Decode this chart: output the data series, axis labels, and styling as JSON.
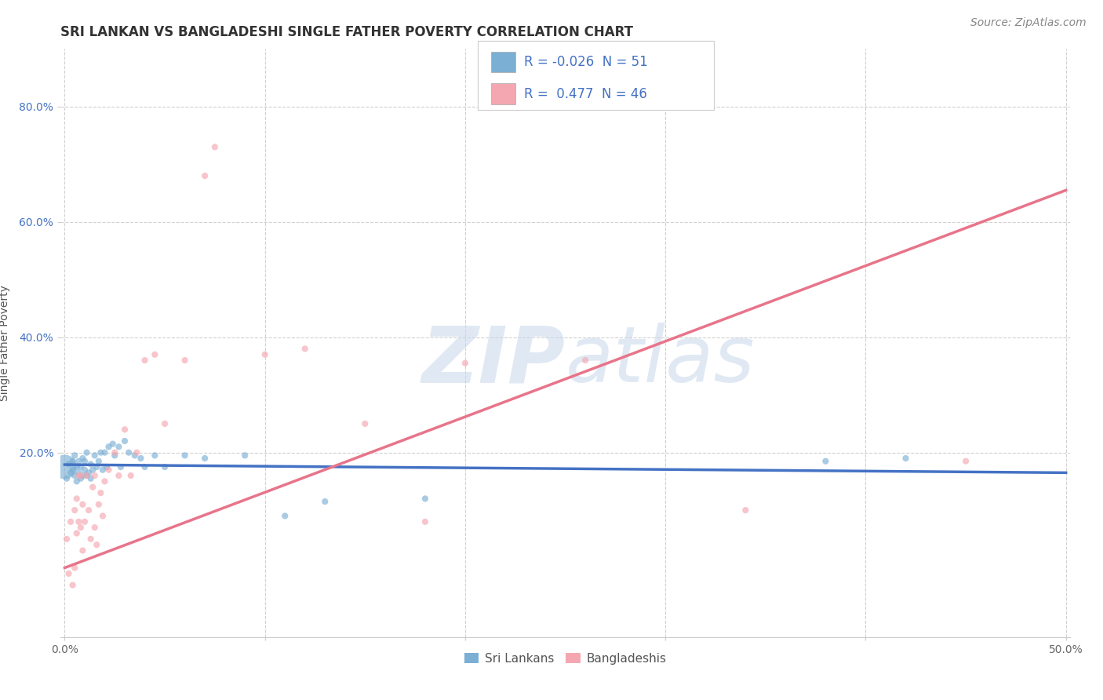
{
  "title": "SRI LANKAN VS BANGLADESHI SINGLE FATHER POVERTY CORRELATION CHART",
  "source": "Source: ZipAtlas.com",
  "ylabel": "Single Father Poverty",
  "xlim": [
    -0.002,
    0.502
  ],
  "ylim": [
    -0.12,
    0.9
  ],
  "xtick_labels": [
    "0.0%",
    "",
    "",
    "",
    "",
    "50.0%"
  ],
  "xtick_vals": [
    0.0,
    0.1,
    0.2,
    0.3,
    0.4,
    0.5
  ],
  "ytick_labels": [
    "20.0%",
    "40.0%",
    "60.0%",
    "80.0%"
  ],
  "ytick_vals": [
    0.2,
    0.4,
    0.6,
    0.8
  ],
  "sri_lanka_color": "#7bafd4",
  "bangladesh_color": "#f4a7b0",
  "sri_lanka_line_color": "#4472c4",
  "bangladesh_line_color": "#e8748a",
  "watermark": "ZIPatlas",
  "legend_r_sri": "-0.026",
  "legend_n_sri": "51",
  "legend_r_ban": "0.477",
  "legend_n_ban": "46",
  "sri_lanka_x": [
    0.0,
    0.001,
    0.002,
    0.003,
    0.004,
    0.004,
    0.005,
    0.005,
    0.006,
    0.006,
    0.007,
    0.007,
    0.008,
    0.008,
    0.009,
    0.009,
    0.01,
    0.01,
    0.011,
    0.011,
    0.012,
    0.013,
    0.013,
    0.014,
    0.015,
    0.016,
    0.017,
    0.018,
    0.019,
    0.02,
    0.021,
    0.022,
    0.024,
    0.025,
    0.027,
    0.028,
    0.03,
    0.032,
    0.035,
    0.038,
    0.04,
    0.045,
    0.05,
    0.06,
    0.07,
    0.09,
    0.11,
    0.13,
    0.18,
    0.38,
    0.42
  ],
  "sri_lanka_y": [
    0.175,
    0.155,
    0.18,
    0.165,
    0.17,
    0.185,
    0.16,
    0.195,
    0.15,
    0.175,
    0.165,
    0.185,
    0.155,
    0.175,
    0.16,
    0.19,
    0.17,
    0.185,
    0.16,
    0.2,
    0.165,
    0.155,
    0.18,
    0.17,
    0.195,
    0.175,
    0.185,
    0.2,
    0.17,
    0.2,
    0.175,
    0.21,
    0.215,
    0.195,
    0.21,
    0.175,
    0.22,
    0.2,
    0.195,
    0.19,
    0.175,
    0.195,
    0.175,
    0.195,
    0.19,
    0.195,
    0.09,
    0.115,
    0.12,
    0.185,
    0.19
  ],
  "sri_lanka_sizes": [
    500,
    35,
    35,
    35,
    35,
    35,
    35,
    35,
    35,
    35,
    35,
    35,
    35,
    35,
    35,
    35,
    35,
    35,
    35,
    35,
    35,
    35,
    35,
    35,
    35,
    35,
    35,
    35,
    35,
    35,
    35,
    35,
    35,
    35,
    35,
    35,
    35,
    35,
    35,
    35,
    35,
    35,
    35,
    35,
    35,
    35,
    35,
    35,
    35,
    35,
    35
  ],
  "bangladesh_x": [
    0.001,
    0.002,
    0.003,
    0.004,
    0.005,
    0.005,
    0.006,
    0.006,
    0.007,
    0.007,
    0.008,
    0.008,
    0.009,
    0.009,
    0.01,
    0.011,
    0.012,
    0.013,
    0.014,
    0.015,
    0.015,
    0.016,
    0.017,
    0.018,
    0.019,
    0.02,
    0.022,
    0.025,
    0.027,
    0.03,
    0.033,
    0.036,
    0.04,
    0.045,
    0.05,
    0.06,
    0.07,
    0.075,
    0.1,
    0.12,
    0.15,
    0.18,
    0.2,
    0.26,
    0.34,
    0.45
  ],
  "bangladesh_y": [
    0.05,
    -0.01,
    0.08,
    -0.03,
    0.1,
    0.0,
    0.06,
    0.12,
    0.08,
    0.16,
    0.07,
    0.16,
    0.03,
    0.11,
    0.08,
    0.16,
    0.1,
    0.05,
    0.14,
    0.07,
    0.16,
    0.04,
    0.11,
    0.13,
    0.09,
    0.15,
    0.17,
    0.2,
    0.16,
    0.24,
    0.16,
    0.2,
    0.36,
    0.37,
    0.25,
    0.36,
    0.68,
    0.73,
    0.37,
    0.38,
    0.25,
    0.08,
    0.355,
    0.36,
    0.1,
    0.185
  ],
  "bangladesh_sizes": [
    35,
    35,
    35,
    35,
    35,
    35,
    35,
    35,
    35,
    35,
    35,
    35,
    35,
    35,
    35,
    35,
    35,
    35,
    35,
    35,
    35,
    35,
    35,
    35,
    35,
    35,
    35,
    35,
    35,
    35,
    35,
    35,
    35,
    35,
    35,
    35,
    35,
    35,
    35,
    35,
    35,
    35,
    35,
    35,
    35,
    35
  ],
  "grid_color": "#cccccc",
  "background_color": "#ffffff",
  "title_fontsize": 12,
  "axis_label_fontsize": 10,
  "tick_fontsize": 10,
  "source_fontsize": 10,
  "ban_line_x0": 0.0,
  "ban_line_y0": 0.0,
  "ban_line_x1": 0.5,
  "ban_line_y1": 0.655,
  "sri_line_x0": 0.0,
  "sri_line_y0": 0.179,
  "sri_line_x1": 0.5,
  "sri_line_y1": 0.165
}
